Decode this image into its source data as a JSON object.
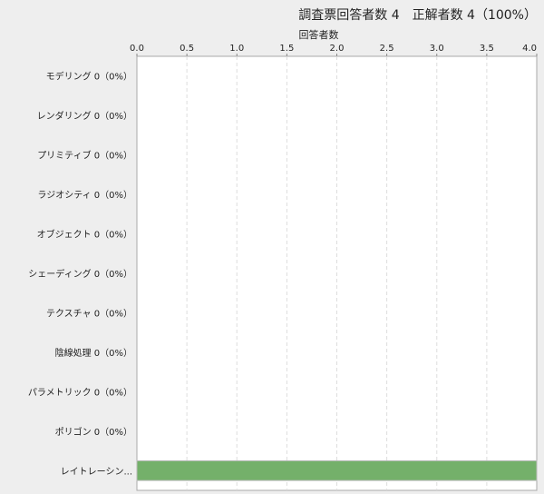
{
  "header": {
    "title": "調査票回答者数 4　正解者数 4（100%）"
  },
  "chart_data": {
    "type": "bar",
    "orientation": "horizontal",
    "xlabel": "回答者数",
    "xlim": [
      0,
      4
    ],
    "ticks": [
      "0.0",
      "0.5",
      "1.0",
      "1.5",
      "2.0",
      "2.5",
      "3.0",
      "3.5",
      "4.0"
    ],
    "grid": true,
    "categories": [
      "モデリング 0（0%）",
      "レンダリング 0（0%）",
      "プリミティブ 0（0%）",
      "ラジオシティ 0（0%）",
      "オブジェクト 0（0%）",
      "シェーディング 0（0%）",
      "テクスチャ 0（0%）",
      "陰線処理 0（0%）",
      "パラメトリック 0（0%）",
      "ポリゴン 0（0%）",
      "レイトレーシン..."
    ],
    "values": [
      0,
      0,
      0,
      0,
      0,
      0,
      0,
      0,
      0,
      0,
      4
    ],
    "bar_color": "#74b06a"
  }
}
